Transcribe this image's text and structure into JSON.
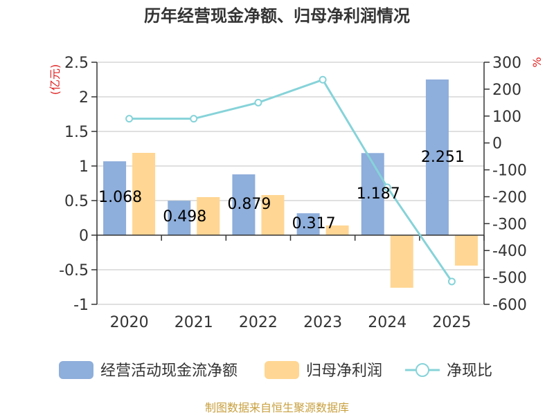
{
  "chart_data": {
    "type": "bar",
    "title": "历年经营现金净额、归母净利润情况",
    "categories": [
      "2020",
      "2021",
      "2022",
      "2023",
      "2024",
      "2025"
    ],
    "series": [
      {
        "name": "经营活动现金流净额",
        "type": "bar",
        "axis": "left",
        "color": "#8eaedb",
        "values": [
          1.068,
          0.498,
          0.879,
          0.317,
          1.187,
          2.251
        ],
        "labels": [
          "1.068",
          "0.498",
          "0.879",
          "0.317",
          "1.187",
          "2.251"
        ]
      },
      {
        "name": "归母净利润",
        "type": "bar",
        "axis": "left",
        "color": "#ffd693",
        "values": [
          1.19,
          0.55,
          0.58,
          0.14,
          -0.76,
          -0.44
        ]
      },
      {
        "name": "净现比",
        "type": "line",
        "axis": "right",
        "color": "#86d3d9",
        "values": [
          90,
          90,
          150,
          235,
          -165,
          -515
        ]
      }
    ],
    "left_axis": {
      "unit": "(亿元)",
      "min": -1,
      "max": 2.5,
      "ticks": [
        2.5,
        2,
        1.5,
        1,
        0.5,
        0,
        -0.5,
        -1
      ],
      "tick_labels": [
        "2.5",
        "2",
        "1.5",
        "1",
        "0.5",
        "0",
        "-0.5",
        "-1"
      ]
    },
    "right_axis": {
      "unit": "%",
      "min": -600,
      "max": 300,
      "ticks": [
        300,
        200,
        100,
        0,
        -100,
        -200,
        -300,
        -400,
        -500,
        -600
      ],
      "tick_labels": [
        "300",
        "200",
        "100",
        "0",
        "-100",
        "-200",
        "-300",
        "-400",
        "-500",
        "-600"
      ]
    },
    "legend": [
      {
        "name": "经营活动现金流净额",
        "kind": "box",
        "color": "#8eaedb"
      },
      {
        "name": "归母净利润",
        "kind": "box",
        "color": "#ffd693"
      },
      {
        "name": "净现比",
        "kind": "line",
        "color": "#86d3d9"
      }
    ],
    "source": "制图数据来自恒生聚源数据库"
  }
}
